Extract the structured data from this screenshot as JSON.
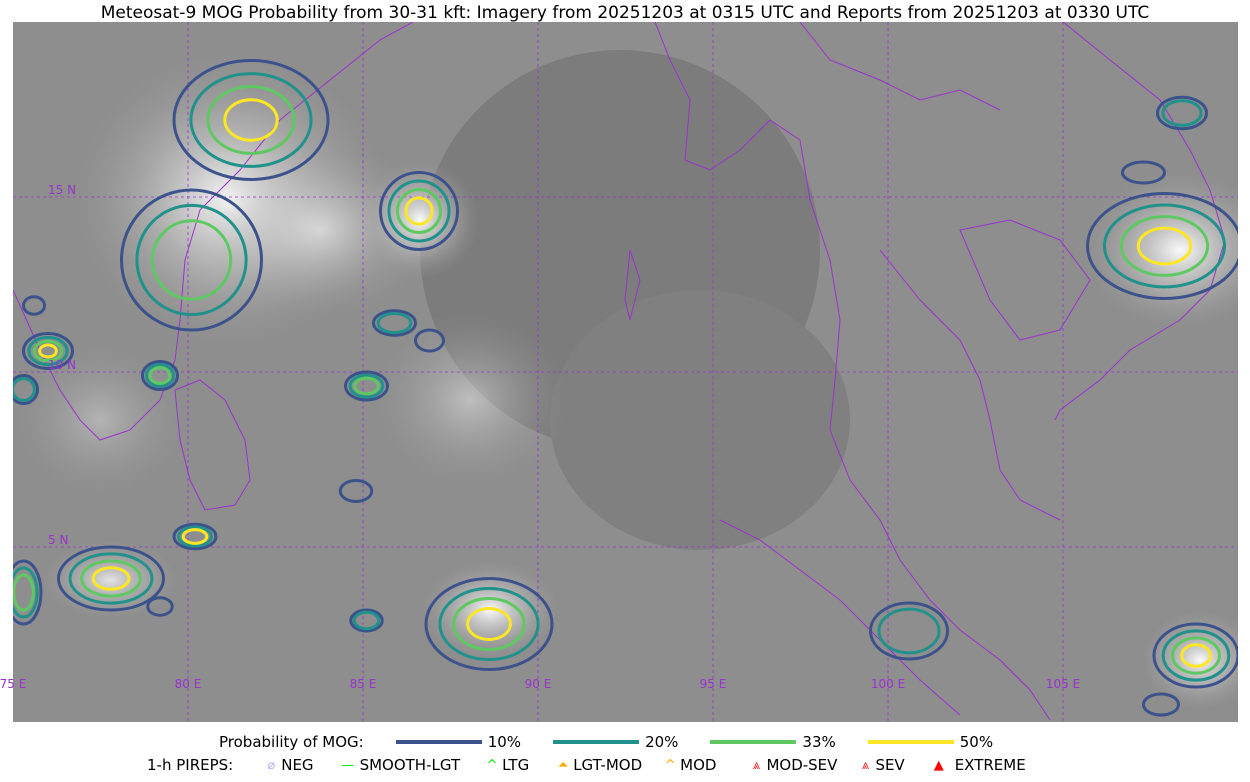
{
  "title": "Meteosat-9 MOG Probability from 30-31 kft: Imagery from 20251203 at 0315 UTC and Reports from 20251203 at 0330 UTC",
  "map": {
    "lon_range": [
      75,
      110
    ],
    "lat_range": [
      0,
      20
    ],
    "lon_ticks": [
      {
        "v": 75,
        "label": "75 E"
      },
      {
        "v": 80,
        "label": "80 E"
      },
      {
        "v": 85,
        "label": "85 E"
      },
      {
        "v": 90,
        "label": "90 E"
      },
      {
        "v": 95,
        "label": "95 E"
      },
      {
        "v": 100,
        "label": "100 E"
      },
      {
        "v": 105,
        "label": "105 E"
      }
    ],
    "lat_ticks": [
      {
        "v": 15,
        "label": "15 N"
      },
      {
        "v": 10,
        "label": "10 N"
      },
      {
        "v": 5,
        "label": "5 N"
      }
    ],
    "grid_color": "#9933cc",
    "coast_color": "#9933cc",
    "contour_regions": [
      {
        "lon": 81.8,
        "lat": 17.2,
        "rlon": 2.2,
        "rlat": 1.7,
        "levels": [
          10,
          20,
          33,
          50
        ]
      },
      {
        "lon": 80.1,
        "lat": 13.2,
        "rlon": 2.0,
        "rlat": 2.0,
        "levels": [
          10,
          20,
          33
        ]
      },
      {
        "lon": 86.6,
        "lat": 14.6,
        "rlon": 1.1,
        "rlat": 1.1,
        "levels": [
          10,
          20,
          33,
          50
        ]
      },
      {
        "lon": 85.9,
        "lat": 11.4,
        "rlon": 0.6,
        "rlat": 0.35,
        "levels": [
          10,
          20
        ]
      },
      {
        "lon": 86.9,
        "lat": 10.9,
        "rlon": 0.4,
        "rlat": 0.3,
        "levels": [
          10
        ]
      },
      {
        "lon": 85.1,
        "lat": 9.6,
        "rlon": 0.6,
        "rlat": 0.4,
        "levels": [
          10,
          20,
          33
        ]
      },
      {
        "lon": 79.2,
        "lat": 9.9,
        "rlon": 0.5,
        "rlat": 0.4,
        "levels": [
          10,
          20,
          33
        ]
      },
      {
        "lon": 76.0,
        "lat": 10.6,
        "rlon": 0.7,
        "rlat": 0.5,
        "levels": [
          10,
          20,
          33,
          50
        ]
      },
      {
        "lon": 75.3,
        "lat": 9.5,
        "rlon": 0.4,
        "rlat": 0.4,
        "levels": [
          10,
          20
        ]
      },
      {
        "lon": 75.6,
        "lat": 11.9,
        "rlon": 0.3,
        "rlat": 0.25,
        "levels": [
          10
        ]
      },
      {
        "lon": 84.8,
        "lat": 6.6,
        "rlon": 0.45,
        "rlat": 0.3,
        "levels": [
          10
        ]
      },
      {
        "lon": 80.2,
        "lat": 5.3,
        "rlon": 0.6,
        "rlat": 0.35,
        "levels": [
          10,
          20,
          50
        ]
      },
      {
        "lon": 77.8,
        "lat": 4.1,
        "rlon": 1.5,
        "rlat": 0.9,
        "levels": [
          10,
          20,
          33,
          50
        ]
      },
      {
        "lon": 75.3,
        "lat": 3.7,
        "rlon": 0.5,
        "rlat": 0.9,
        "levels": [
          10,
          20,
          33
        ]
      },
      {
        "lon": 79.2,
        "lat": 3.3,
        "rlon": 0.35,
        "rlat": 0.25,
        "levels": [
          10
        ]
      },
      {
        "lon": 85.1,
        "lat": 2.9,
        "rlon": 0.45,
        "rlat": 0.3,
        "levels": [
          10,
          20
        ]
      },
      {
        "lon": 88.6,
        "lat": 2.8,
        "rlon": 1.8,
        "rlat": 1.3,
        "levels": [
          10,
          20,
          33,
          50
        ]
      },
      {
        "lon": 100.6,
        "lat": 2.6,
        "rlon": 1.1,
        "rlat": 0.8,
        "levels": [
          10,
          20
        ]
      },
      {
        "lon": 108.8,
        "lat": 1.9,
        "rlon": 1.2,
        "rlat": 0.9,
        "levels": [
          10,
          20,
          33,
          50
        ]
      },
      {
        "lon": 108.4,
        "lat": 17.4,
        "rlon": 0.7,
        "rlat": 0.45,
        "levels": [
          10,
          20
        ]
      },
      {
        "lon": 107.3,
        "lat": 15.7,
        "rlon": 0.6,
        "rlat": 0.3,
        "levels": [
          10
        ]
      },
      {
        "lon": 107.9,
        "lat": 13.6,
        "rlon": 2.2,
        "rlat": 1.5,
        "levels": [
          10,
          20,
          33,
          50
        ]
      },
      {
        "lon": 107.8,
        "lat": 0.5,
        "rlon": 0.5,
        "rlat": 0.3,
        "levels": [
          10
        ]
      }
    ]
  },
  "legend": {
    "mog_label": "Probability of MOG:",
    "mog_levels": [
      {
        "label": "10%",
        "value": 10,
        "color": "#3b528b"
      },
      {
        "label": "20%",
        "value": 20,
        "color": "#21918c"
      },
      {
        "label": "33%",
        "value": 33,
        "color": "#5ec962"
      },
      {
        "label": "50%",
        "value": 50,
        "color": "#fde725"
      }
    ],
    "pirep_label": "1-h PIREPS:",
    "pireps": [
      {
        "label": "NEG",
        "icon": "neg-icon",
        "color": "#b0b0ff"
      },
      {
        "label": "SMOOTH-LGT",
        "icon": "smooth-lgt-icon",
        "color": "#00ee00"
      },
      {
        "label": "LTG",
        "icon": "ltg-icon",
        "color": "#00ee00"
      },
      {
        "label": "LGT-MOD",
        "icon": "lgt-mod-icon",
        "color": "#ffaa00"
      },
      {
        "label": "MOD",
        "icon": "mod-icon",
        "color": "#ffaa00"
      },
      {
        "label": "MOD-SEV",
        "icon": "mod-sev-icon",
        "color": "#ff2020"
      },
      {
        "label": "SEV",
        "icon": "sev-icon",
        "color": "#ff2020"
      },
      {
        "label": "EXTREME",
        "icon": "extreme-icon",
        "color": "#ff0000"
      }
    ]
  }
}
